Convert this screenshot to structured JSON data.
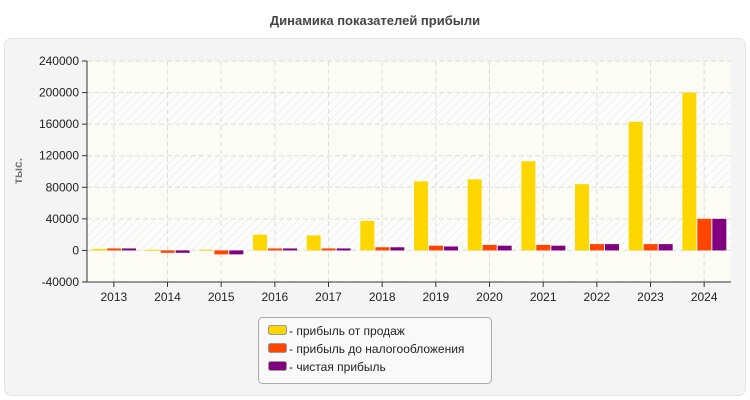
{
  "chart_data": {
    "type": "bar",
    "title": "Динамика показателей прибыли",
    "xlabel": "",
    "ylabel": "тыс.",
    "ylim": [
      -40000,
      240000
    ],
    "yticks": [
      "240000",
      "200000",
      "160000",
      "120000",
      "80000",
      "40000",
      "0",
      "-40000"
    ],
    "ytick_values": [
      240000,
      200000,
      160000,
      120000,
      80000,
      40000,
      0,
      -40000
    ],
    "grid": true,
    "legend_position": "bottom",
    "categories": [
      "2013",
      "2014",
      "2015",
      "2016",
      "2017",
      "2018",
      "2019",
      "2020",
      "2021",
      "2022",
      "2023",
      "2024"
    ],
    "series": [
      {
        "name": "- прибыль от продаж",
        "color": "#ffd700",
        "values": [
          2000,
          1000,
          1000,
          20000,
          19000,
          37500,
          87500,
          90000,
          113000,
          84000,
          163000,
          200000
        ]
      },
      {
        "name": "- прибыль до налогообложения",
        "color": "#ff4500",
        "values": [
          2500,
          -3000,
          -5000,
          2500,
          2500,
          4000,
          6000,
          7000,
          7000,
          8000,
          8000,
          40000
        ]
      },
      {
        "name": "- чистая прибыль",
        "color": "#800080",
        "values": [
          2500,
          -3000,
          -5000,
          2500,
          2500,
          4000,
          5000,
          6000,
          6000,
          8000,
          8000,
          40000
        ]
      }
    ]
  }
}
